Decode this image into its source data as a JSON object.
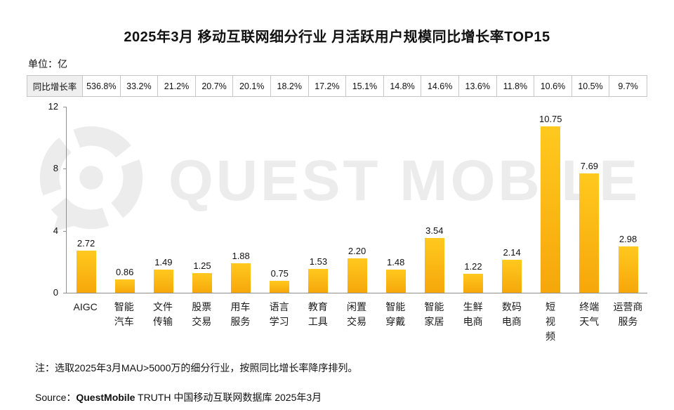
{
  "title": "2025年3月 移动互联网细分行业 月活跃用户规模同比增长率TOP15",
  "unit_label": "单位：亿",
  "growth_table": {
    "header": "同比增长率",
    "values": [
      "536.8%",
      "33.2%",
      "21.2%",
      "20.7%",
      "20.1%",
      "18.2%",
      "17.2%",
      "15.1%",
      "14.8%",
      "14.6%",
      "13.6%",
      "11.8%",
      "10.6%",
      "10.5%",
      "9.7%"
    ]
  },
  "chart_data": {
    "type": "bar",
    "title": "2025年3月 移动互联网细分行业 月活跃用户规模同比增长率TOP15",
    "xlabel": "",
    "ylabel": "单位：亿",
    "ylim": [
      0,
      12
    ],
    "yticks": [
      0,
      4,
      8,
      12
    ],
    "grid": false,
    "legend": false,
    "categories": [
      "AIGC",
      "智能汽车",
      "文件传输",
      "股票交易",
      "用车服务",
      "语言学习",
      "教育工具",
      "闲置交易",
      "智能穿戴",
      "智能家居",
      "生鲜电商",
      "数码电商",
      "短视频",
      "终端天气",
      "运营商服务"
    ],
    "category_lines": [
      [
        "AIGC"
      ],
      [
        "智能",
        "汽车"
      ],
      [
        "文件",
        "传输"
      ],
      [
        "股票",
        "交易"
      ],
      [
        "用车",
        "服务"
      ],
      [
        "语言",
        "学习"
      ],
      [
        "教育",
        "工具"
      ],
      [
        "闲置",
        "交易"
      ],
      [
        "智能",
        "穿戴"
      ],
      [
        "智能",
        "家居"
      ],
      [
        "生鲜",
        "电商"
      ],
      [
        "数码",
        "电商"
      ],
      [
        "短",
        "视",
        "频"
      ],
      [
        "终端",
        "天气"
      ],
      [
        "运营商",
        "服务"
      ]
    ],
    "values": [
      2.72,
      0.86,
      1.49,
      1.25,
      1.88,
      0.75,
      1.53,
      2.2,
      1.48,
      3.54,
      1.22,
      2.14,
      10.75,
      7.69,
      2.98
    ],
    "value_labels": [
      "2.72",
      "0.86",
      "1.49",
      "1.25",
      "1.88",
      "0.75",
      "1.53",
      "2.20",
      "1.48",
      "3.54",
      "1.22",
      "2.14",
      "10.75",
      "7.69",
      "2.98"
    ],
    "growth_rates": [
      "536.8%",
      "33.2%",
      "21.2%",
      "20.7%",
      "20.1%",
      "18.2%",
      "17.2%",
      "15.1%",
      "14.8%",
      "14.6%",
      "13.6%",
      "11.8%",
      "10.6%",
      "10.5%",
      "9.7%"
    ],
    "bar_color_top": "#ffc91f",
    "bar_color_bottom": "#f6a70a"
  },
  "watermark": {
    "text": "QUEST MOBILE"
  },
  "note": "注：选取2025年3月MAU>5000万的细分行业，按照同比增长率降序排列。",
  "source": {
    "prefix": "Source：",
    "brand": "QuestMobile",
    "suffix": " TRUTH 中国移动互联网数据库 2025年3月",
    "brand_color": "#f39800"
  }
}
